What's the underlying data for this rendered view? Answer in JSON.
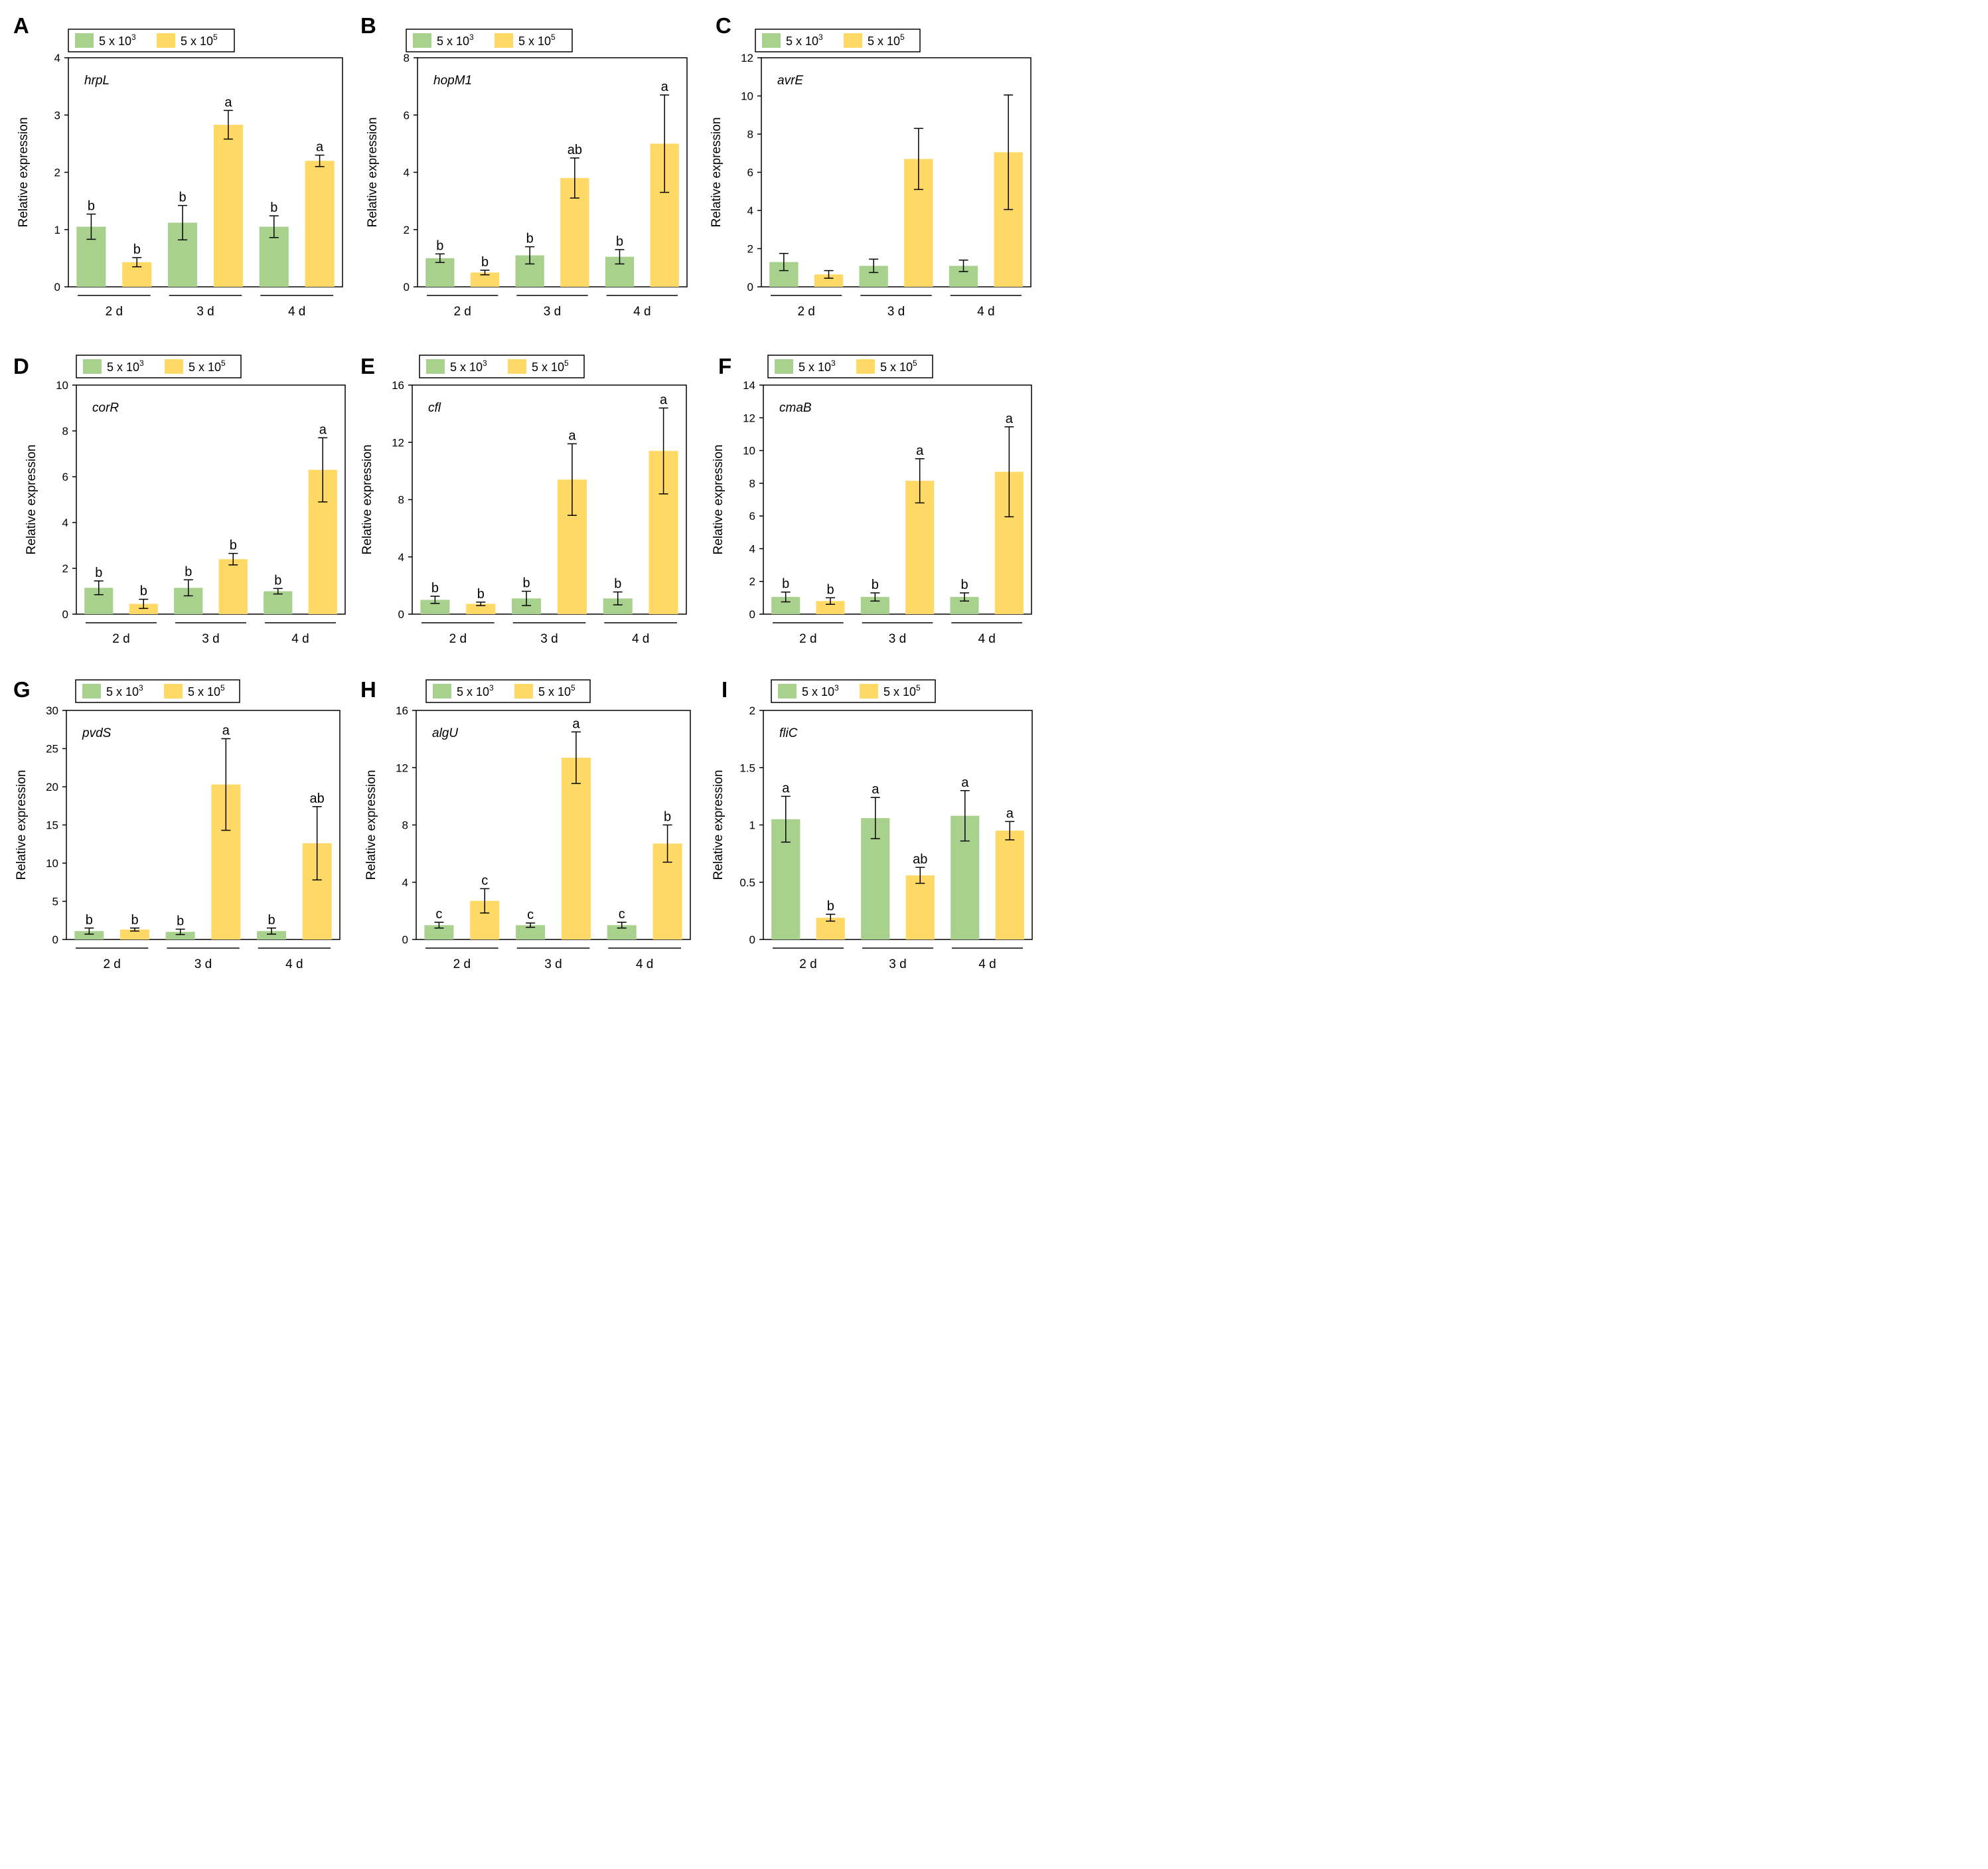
{
  "figure": {
    "title": ""
  },
  "colors": {
    "low": "#a9d18e",
    "high": "#ffd966",
    "axis": "#000000"
  },
  "legend": {
    "low_label": "5 x 10",
    "low_exp": "3",
    "high_label": "5 x 10",
    "high_exp": "5"
  },
  "chart_data": [
    {
      "panel": "A",
      "type": "bar",
      "gene": "hrpL",
      "ylabel": "Relative expression",
      "ylim": [
        0,
        4
      ],
      "yticks": [
        0,
        1,
        2,
        3,
        4
      ],
      "categories": [
        "2 d",
        "3 d",
        "4 d"
      ],
      "series": [
        {
          "name": "5 x 10^3",
          "values": [
            1.05,
            1.12,
            1.05
          ],
          "errors": [
            0.22,
            0.3,
            0.19
          ],
          "labels": [
            "b",
            "b",
            "b"
          ]
        },
        {
          "name": "5 x 10^5",
          "values": [
            0.43,
            2.83,
            2.2
          ],
          "errors": [
            0.08,
            0.25,
            0.1
          ],
          "labels": [
            "b",
            "a",
            "a"
          ]
        }
      ]
    },
    {
      "panel": "B",
      "type": "bar",
      "gene": "hopM1",
      "ylabel": "Relative expression",
      "ylim": [
        0,
        8
      ],
      "yticks": [
        0,
        2,
        4,
        6,
        8
      ],
      "categories": [
        "2 d",
        "3 d",
        "4 d"
      ],
      "series": [
        {
          "name": "5 x 10^3",
          "values": [
            1.0,
            1.1,
            1.05
          ],
          "errors": [
            0.15,
            0.3,
            0.25
          ],
          "labels": [
            "b",
            "b",
            "b"
          ]
        },
        {
          "name": "5 x 10^5",
          "values": [
            0.5,
            3.8,
            5.0
          ],
          "errors": [
            0.08,
            0.7,
            1.7
          ],
          "labels": [
            "b",
            "ab",
            "a"
          ]
        }
      ]
    },
    {
      "panel": "C",
      "type": "bar",
      "gene": "avrE",
      "ylabel": "Relative expression",
      "ylim": [
        0,
        12
      ],
      "yticks": [
        0,
        2,
        4,
        6,
        8,
        10,
        12
      ],
      "categories": [
        "2 d",
        "3 d",
        "4 d"
      ],
      "series": [
        {
          "name": "5 x 10^3",
          "values": [
            1.3,
            1.1,
            1.1
          ],
          "errors": [
            0.45,
            0.35,
            0.3
          ],
          "labels": [
            "",
            "",
            ""
          ]
        },
        {
          "name": "5 x 10^5",
          "values": [
            0.65,
            6.7,
            7.05
          ],
          "errors": [
            0.2,
            1.6,
            3.0
          ],
          "labels": [
            "",
            "",
            ""
          ]
        }
      ]
    },
    {
      "panel": "D",
      "type": "bar",
      "gene": "corR",
      "ylabel": "Relative expression",
      "ylim": [
        0,
        10
      ],
      "yticks": [
        0,
        2,
        4,
        6,
        8,
        10
      ],
      "categories": [
        "2 d",
        "3 d",
        "4 d"
      ],
      "series": [
        {
          "name": "5 x 10^3",
          "values": [
            1.15,
            1.15,
            1.0
          ],
          "errors": [
            0.3,
            0.35,
            0.12
          ],
          "labels": [
            "b",
            "b",
            "b"
          ]
        },
        {
          "name": "5 x 10^5",
          "values": [
            0.45,
            2.4,
            6.3
          ],
          "errors": [
            0.2,
            0.25,
            1.4
          ],
          "labels": [
            "b",
            "b",
            "a"
          ]
        }
      ]
    },
    {
      "panel": "E",
      "type": "bar",
      "gene": "cfl",
      "ylabel": "Relative expression",
      "ylim": [
        0,
        16
      ],
      "yticks": [
        0,
        4,
        8,
        12,
        16
      ],
      "categories": [
        "2 d",
        "3 d",
        "4 d"
      ],
      "series": [
        {
          "name": "5 x 10^3",
          "values": [
            1.0,
            1.1,
            1.1
          ],
          "errors": [
            0.25,
            0.5,
            0.45
          ],
          "labels": [
            "b",
            "b",
            "b"
          ]
        },
        {
          "name": "5 x 10^5",
          "values": [
            0.72,
            9.4,
            11.4
          ],
          "errors": [
            0.12,
            2.5,
            3.0
          ],
          "labels": [
            "b",
            "a",
            "a"
          ]
        }
      ]
    },
    {
      "panel": "F",
      "type": "bar",
      "gene": "cmaB",
      "ylabel": "Relative expression",
      "ylim": [
        0,
        14
      ],
      "yticks": [
        0,
        2,
        4,
        6,
        8,
        10,
        12,
        14
      ],
      "categories": [
        "2 d",
        "3 d",
        "4 d"
      ],
      "series": [
        {
          "name": "5 x 10^3",
          "values": [
            1.05,
            1.05,
            1.05
          ],
          "errors": [
            0.3,
            0.25,
            0.25
          ],
          "labels": [
            "b",
            "b",
            "b"
          ]
        },
        {
          "name": "5 x 10^5",
          "values": [
            0.8,
            8.15,
            8.7
          ],
          "errors": [
            0.2,
            1.35,
            2.75
          ],
          "labels": [
            "b",
            "a",
            "a"
          ]
        }
      ]
    },
    {
      "panel": "G",
      "type": "bar",
      "gene": "pvdS",
      "ylabel": "Relative expression",
      "ylim": [
        0,
        30
      ],
      "yticks": [
        0,
        5,
        10,
        15,
        20,
        25,
        30
      ],
      "categories": [
        "2 d",
        "3 d",
        "4 d"
      ],
      "series": [
        {
          "name": "5 x 10^3",
          "values": [
            1.1,
            1.0,
            1.1
          ],
          "errors": [
            0.4,
            0.35,
            0.4
          ],
          "labels": [
            "b",
            "b",
            "b"
          ]
        },
        {
          "name": "5 x 10^5",
          "values": [
            1.3,
            20.3,
            12.6
          ],
          "errors": [
            0.2,
            6.0,
            4.8
          ],
          "labels": [
            "b",
            "a",
            "ab"
          ]
        }
      ]
    },
    {
      "panel": "H",
      "type": "bar",
      "gene": "algU",
      "ylabel": "Relative expression",
      "ylim": [
        0,
        16
      ],
      "yticks": [
        0,
        4,
        8,
        12,
        16
      ],
      "categories": [
        "2 d",
        "3 d",
        "4 d"
      ],
      "series": [
        {
          "name": "5 x 10^3",
          "values": [
            1.0,
            1.0,
            1.0
          ],
          "errors": [
            0.2,
            0.15,
            0.2
          ],
          "labels": [
            "c",
            "c",
            "c"
          ]
        },
        {
          "name": "5 x 10^5",
          "values": [
            2.7,
            12.7,
            6.7
          ],
          "errors": [
            0.85,
            1.8,
            1.3
          ],
          "labels": [
            "c",
            "a",
            "b"
          ]
        }
      ]
    },
    {
      "panel": "I",
      "type": "bar",
      "gene": "fliC",
      "ylabel": "Relative expression",
      "ylim": [
        0,
        2
      ],
      "yticks": [
        "0",
        "0.5",
        "1",
        "1.5",
        "2"
      ],
      "categories": [
        "2 d",
        "3 d",
        "4 d"
      ],
      "series": [
        {
          "name": "5 x 10^3",
          "values": [
            1.05,
            1.06,
            1.08
          ],
          "errors": [
            0.2,
            0.18,
            0.22
          ],
          "labels": [
            "a",
            "a",
            "a"
          ]
        },
        {
          "name": "5 x 10^5",
          "values": [
            0.19,
            0.56,
            0.95
          ],
          "errors": [
            0.03,
            0.07,
            0.08
          ],
          "labels": [
            "b",
            "ab",
            "a"
          ]
        }
      ]
    }
  ]
}
